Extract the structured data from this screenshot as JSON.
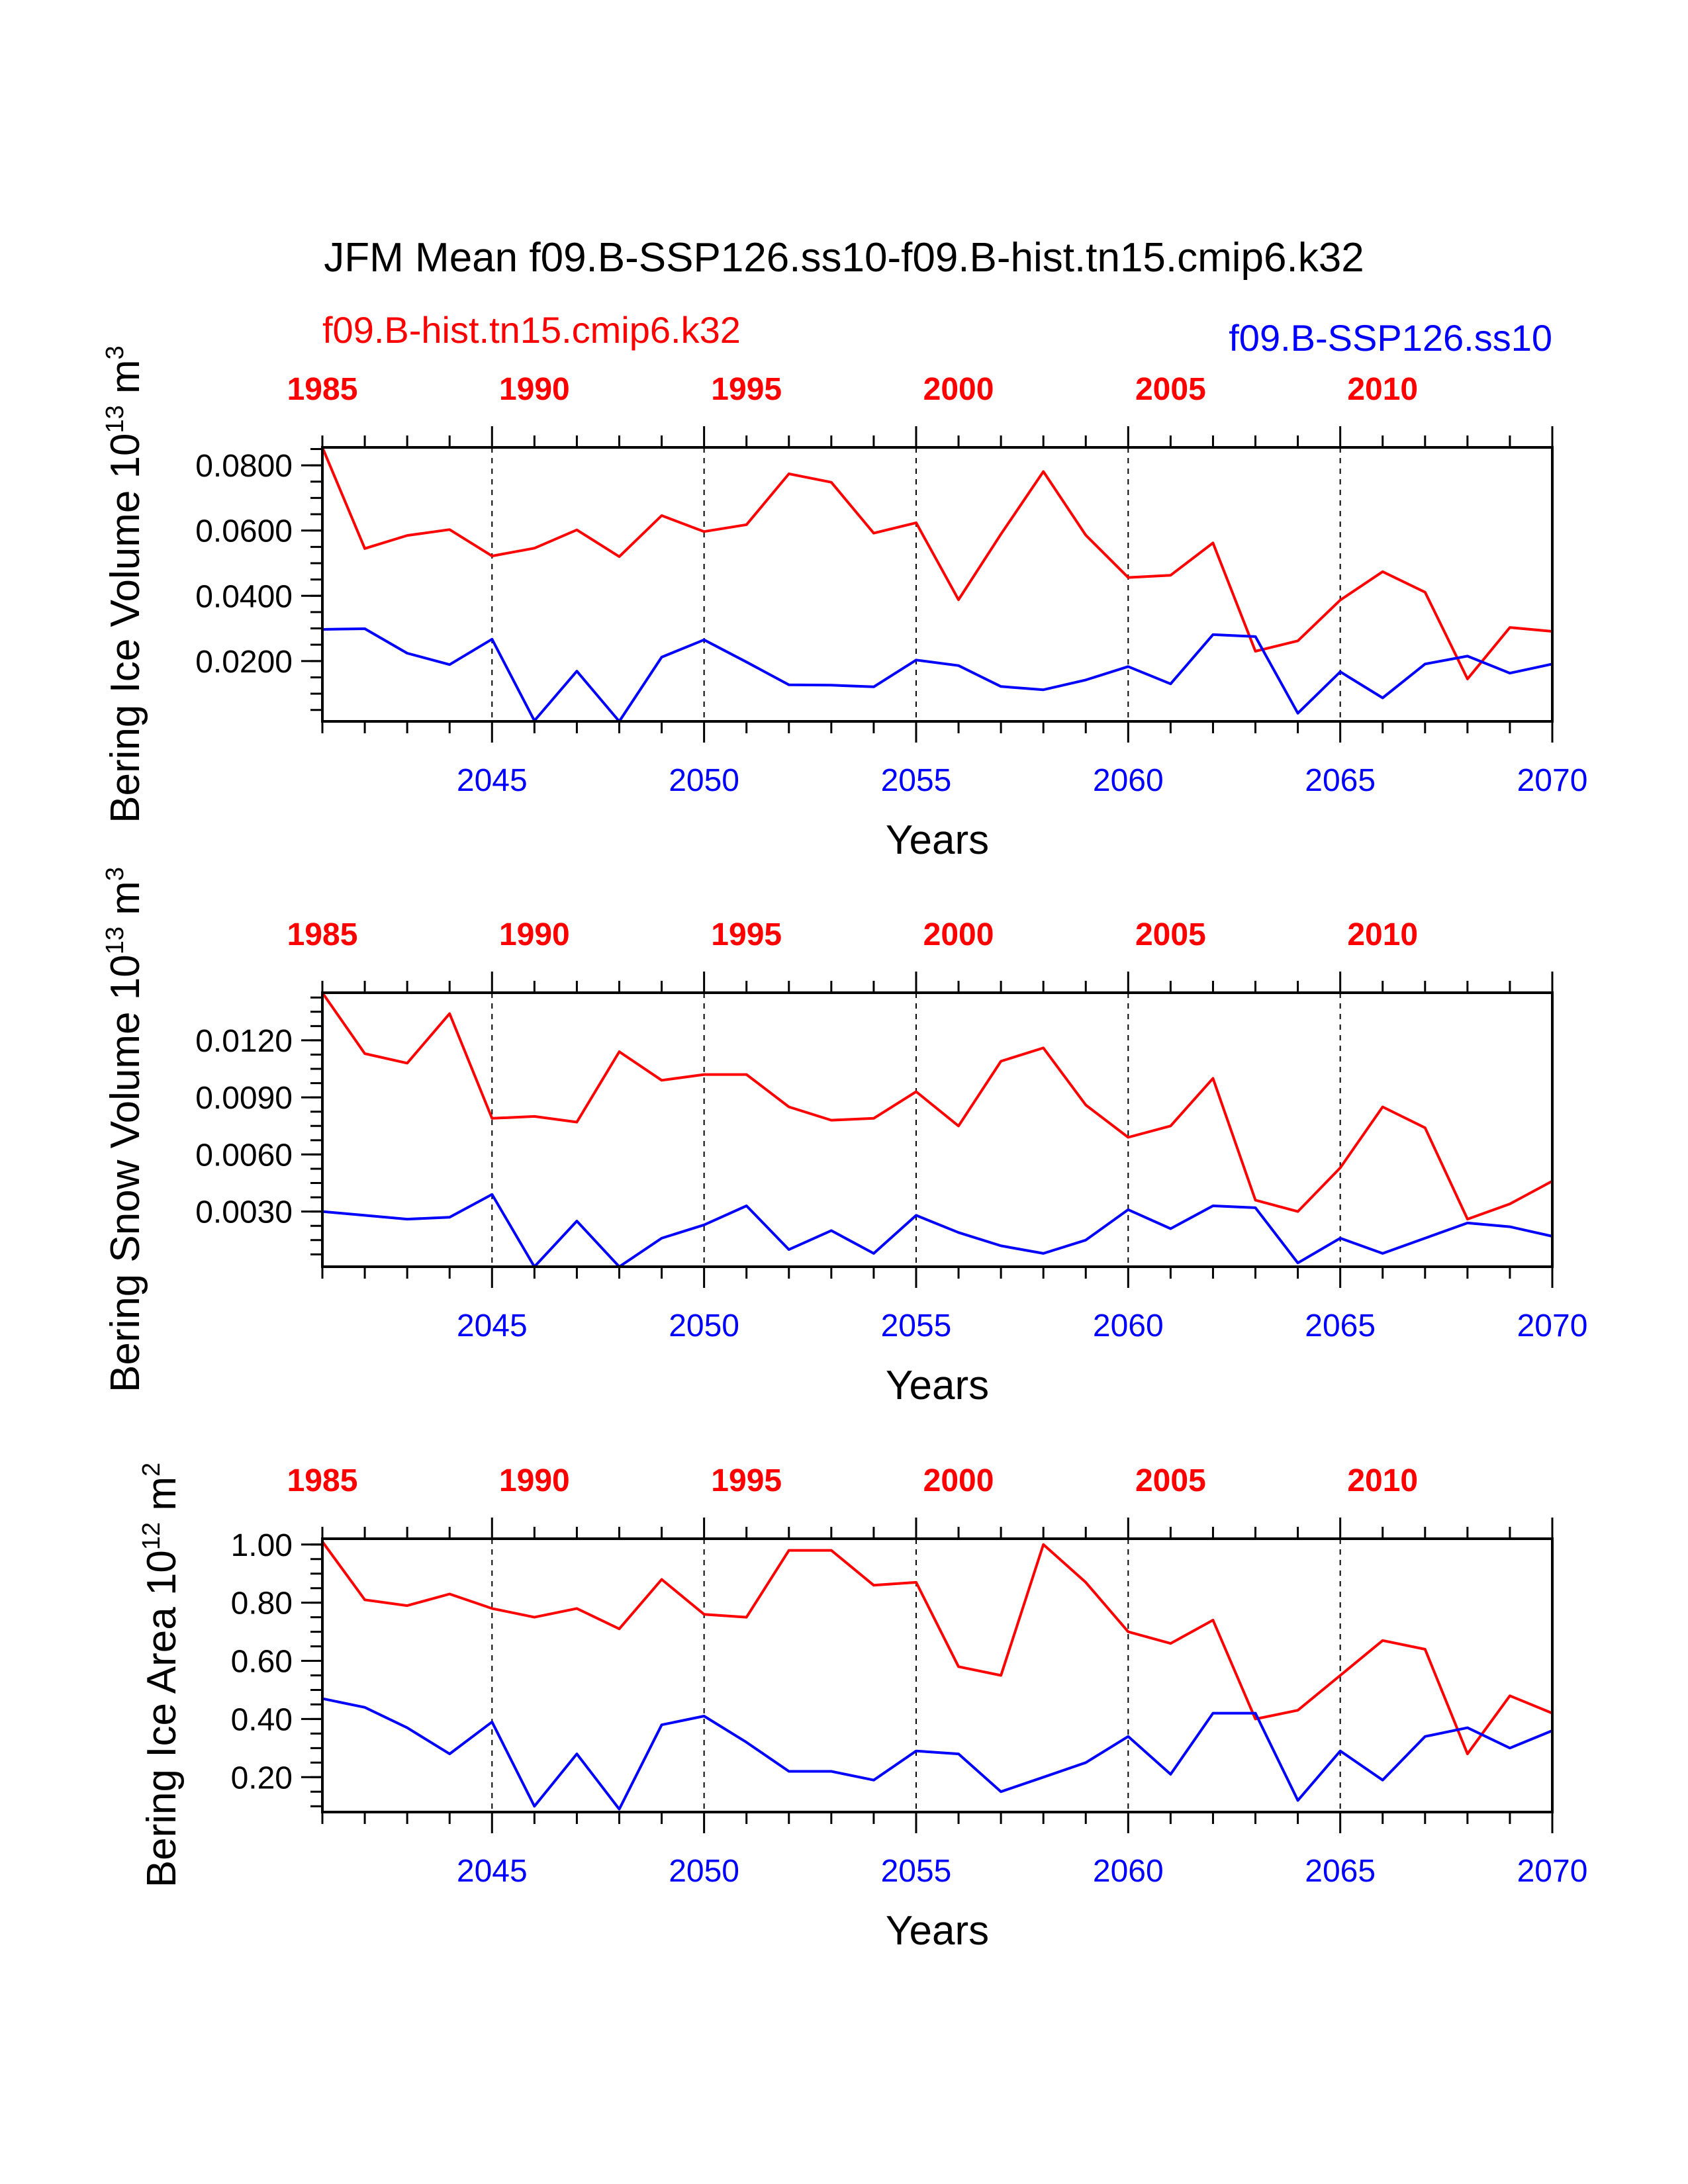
{
  "figure": {
    "title": "JFM Mean f09.B-SSP126.ss10-f09.B-hist.tn15.cmip6.k32",
    "legend": {
      "hist_label": "f09.B-hist.tn15.cmip6.k32",
      "ssp_label": "f09.B-SSP126.ss10"
    },
    "colors": {
      "hist": "#ff0000",
      "ssp": "#0000ff",
      "frame": "#000000"
    }
  },
  "chart_data": [
    {
      "type": "line",
      "ylabel": "Bering Ice Volume 10",
      "ylabel_exponent": "13",
      "ylabel_unit": " m",
      "ylabel_unit_exponent": "3",
      "xlabel": "Years",
      "ylim": [
        0.0015,
        0.0855
      ],
      "yticks": [
        0.02,
        0.04,
        0.06,
        0.08
      ],
      "ytick_labels": [
        "0.0200",
        "0.0400",
        "0.0600",
        "0.0800"
      ],
      "yminor_step": 0.005,
      "xlim_bottom": [
        2041,
        2070
      ],
      "bottom_ticks": [
        2045,
        2050,
        2055,
        2060,
        2065,
        2070
      ],
      "bottom_tick_labels": [
        "2045",
        "2050",
        "2055",
        "2060",
        "2065",
        "2070"
      ],
      "top_ticks": [
        1985,
        1990,
        1995,
        2000,
        2005,
        2010
      ],
      "top_tick_labels": [
        "1985",
        "1990",
        "1995",
        "2000",
        "2005",
        "2010"
      ],
      "dashed_gridlines_at_years": [
        2045,
        2050,
        2055,
        2060,
        2065
      ],
      "series": [
        {
          "name": "f09.B-hist.tn15.cmip6.k32",
          "color": "#ff0000",
          "x": [
            1985,
            1986,
            1987,
            1988,
            1989,
            1990,
            1991,
            1992,
            1993,
            1994,
            1995,
            1996,
            1997,
            1998,
            1999,
            2000,
            2001,
            2002,
            2003,
            2004,
            2005,
            2006,
            2007,
            2008,
            2009,
            2010,
            2011,
            2012,
            2013,
            2014
          ],
          "values": [
            0.0855,
            0.0545,
            0.0585,
            0.0603,
            0.0522,
            0.0546,
            0.0602,
            0.052,
            0.0646,
            0.0597,
            0.0618,
            0.0774,
            0.0748,
            0.0592,
            0.0624,
            0.0388,
            0.0589,
            0.0781,
            0.0586,
            0.0456,
            0.0463,
            0.0562,
            0.023,
            0.0262,
            0.0387,
            0.0474,
            0.0411,
            0.0145,
            0.0303,
            0.0291
          ]
        },
        {
          "name": "f09.B-SSP126.ss10",
          "color": "#0000ff",
          "x": [
            2041,
            2042,
            2043,
            2044,
            2045,
            2046,
            2047,
            2048,
            2049,
            2050,
            2051,
            2052,
            2053,
            2054,
            2055,
            2056,
            2057,
            2058,
            2059,
            2060,
            2061,
            2062,
            2063,
            2064,
            2065,
            2066,
            2067,
            2068,
            2069,
            2070
          ],
          "values": [
            0.0297,
            0.0299,
            0.0224,
            0.0189,
            0.0267,
            0.0017,
            0.0169,
            0.0015,
            0.0212,
            0.0265,
            0.0197,
            0.0127,
            0.0126,
            0.0121,
            0.0203,
            0.0186,
            0.0122,
            0.0112,
            0.0142,
            0.0183,
            0.013,
            0.0281,
            0.0275,
            0.004,
            0.0167,
            0.0087,
            0.0191,
            0.0215,
            0.0163,
            0.0191
          ]
        }
      ]
    },
    {
      "type": "line",
      "ylabel": "Bering Snow Volume 10",
      "ylabel_exponent": "13",
      "ylabel_unit": " m",
      "ylabel_unit_exponent": "3",
      "xlabel": "Years",
      "ylim": [
        0.0001,
        0.0145
      ],
      "yticks": [
        0.003,
        0.006,
        0.009,
        0.012
      ],
      "ytick_labels": [
        "0.0030",
        "0.0060",
        "0.0090",
        "0.0120"
      ],
      "yminor_step": 0.00075,
      "xlim_bottom": [
        2041,
        2070
      ],
      "bottom_ticks": [
        2045,
        2050,
        2055,
        2060,
        2065,
        2070
      ],
      "bottom_tick_labels": [
        "2045",
        "2050",
        "2055",
        "2060",
        "2065",
        "2070"
      ],
      "top_ticks": [
        1985,
        1990,
        1995,
        2000,
        2005,
        2010
      ],
      "top_tick_labels": [
        "1985",
        "1990",
        "1995",
        "2000",
        "2005",
        "2010"
      ],
      "dashed_gridlines_at_years": [
        2045,
        2050,
        2055,
        2060,
        2065
      ],
      "series": [
        {
          "name": "f09.B-hist.tn15.cmip6.k32",
          "color": "#ff0000",
          "x": [
            1985,
            1986,
            1987,
            1988,
            1989,
            1990,
            1991,
            1992,
            1993,
            1994,
            1995,
            1996,
            1997,
            1998,
            1999,
            2000,
            2001,
            2002,
            2003,
            2004,
            2005,
            2006,
            2007,
            2008,
            2009,
            2010,
            2011,
            2012,
            2013,
            2014
          ],
          "values": [
            0.0145,
            0.0113,
            0.0108,
            0.0134,
            0.0079,
            0.008,
            0.0077,
            0.0114,
            0.0099,
            0.0102,
            0.0102,
            0.0085,
            0.0078,
            0.0079,
            0.0093,
            0.0075,
            0.0109,
            0.0116,
            0.0086,
            0.0069,
            0.0075,
            0.01,
            0.0036,
            0.003,
            0.0053,
            0.0085,
            0.0074,
            0.0026,
            0.0034,
            0.0046
          ]
        },
        {
          "name": "f09.B-SSP126.ss10",
          "color": "#0000ff",
          "x": [
            2041,
            2042,
            2043,
            2044,
            2045,
            2046,
            2047,
            2048,
            2049,
            2050,
            2051,
            2052,
            2053,
            2054,
            2055,
            2056,
            2057,
            2058,
            2059,
            2060,
            2061,
            2062,
            2063,
            2064,
            2065,
            2066,
            2067,
            2068,
            2069,
            2070
          ],
          "values": [
            0.003,
            0.0028,
            0.0026,
            0.0027,
            0.0039,
            0.0001,
            0.0025,
            0.0001,
            0.0016,
            0.0023,
            0.0033,
            0.001,
            0.002,
            0.0008,
            0.0028,
            0.0019,
            0.0012,
            0.0008,
            0.0015,
            0.0031,
            0.0021,
            0.0033,
            0.0032,
            0.0003,
            0.0016,
            0.0008,
            0.0016,
            0.0024,
            0.0022,
            0.0017
          ]
        }
      ]
    },
    {
      "type": "line",
      "ylabel": "Bering Ice Area 10",
      "ylabel_exponent": "12",
      "ylabel_unit": " m",
      "ylabel_unit_exponent": "2",
      "xlabel": "Years",
      "ylim": [
        0.08,
        1.02
      ],
      "yticks": [
        0.2,
        0.4,
        0.6,
        0.8,
        1.0
      ],
      "ytick_labels": [
        "0.20",
        "0.40",
        "0.60",
        "0.80",
        "1.00"
      ],
      "yminor_step": 0.05,
      "xlim_bottom": [
        2041,
        2070
      ],
      "bottom_ticks": [
        2045,
        2050,
        2055,
        2060,
        2065,
        2070
      ],
      "bottom_tick_labels": [
        "2045",
        "2050",
        "2055",
        "2060",
        "2065",
        "2070"
      ],
      "top_ticks": [
        1985,
        1990,
        1995,
        2000,
        2005,
        2010
      ],
      "top_tick_labels": [
        "1985",
        "1990",
        "1995",
        "2000",
        "2005",
        "2010"
      ],
      "dashed_gridlines_at_years": [
        2045,
        2050,
        2055,
        2060,
        2065
      ],
      "series": [
        {
          "name": "f09.B-hist.tn15.cmip6.k32",
          "color": "#ff0000",
          "x": [
            1985,
            1986,
            1987,
            1988,
            1989,
            1990,
            1991,
            1992,
            1993,
            1994,
            1995,
            1996,
            1997,
            1998,
            1999,
            2000,
            2001,
            2002,
            2003,
            2004,
            2005,
            2006,
            2007,
            2008,
            2009,
            2010,
            2011,
            2012,
            2013,
            2014
          ],
          "values": [
            1.01,
            0.81,
            0.79,
            0.83,
            0.78,
            0.75,
            0.78,
            0.71,
            0.88,
            0.76,
            0.75,
            0.98,
            0.98,
            0.86,
            0.87,
            0.58,
            0.55,
            1.0,
            0.87,
            0.7,
            0.66,
            0.74,
            0.4,
            0.43,
            0.55,
            0.67,
            0.64,
            0.28,
            0.48,
            0.42
          ]
        },
        {
          "name": "f09.B-SSP126.ss10",
          "color": "#0000ff",
          "x": [
            2041,
            2042,
            2043,
            2044,
            2045,
            2046,
            2047,
            2048,
            2049,
            2050,
            2051,
            2052,
            2053,
            2054,
            2055,
            2056,
            2057,
            2058,
            2059,
            2060,
            2061,
            2062,
            2063,
            2064,
            2065,
            2066,
            2067,
            2068,
            2069,
            2070
          ],
          "values": [
            0.47,
            0.44,
            0.37,
            0.28,
            0.39,
            0.1,
            0.28,
            0.09,
            0.38,
            0.41,
            0.32,
            0.22,
            0.22,
            0.19,
            0.29,
            0.28,
            0.15,
            0.2,
            0.25,
            0.34,
            0.21,
            0.42,
            0.42,
            0.12,
            0.29,
            0.19,
            0.34,
            0.37,
            0.3,
            0.36
          ]
        }
      ]
    }
  ]
}
